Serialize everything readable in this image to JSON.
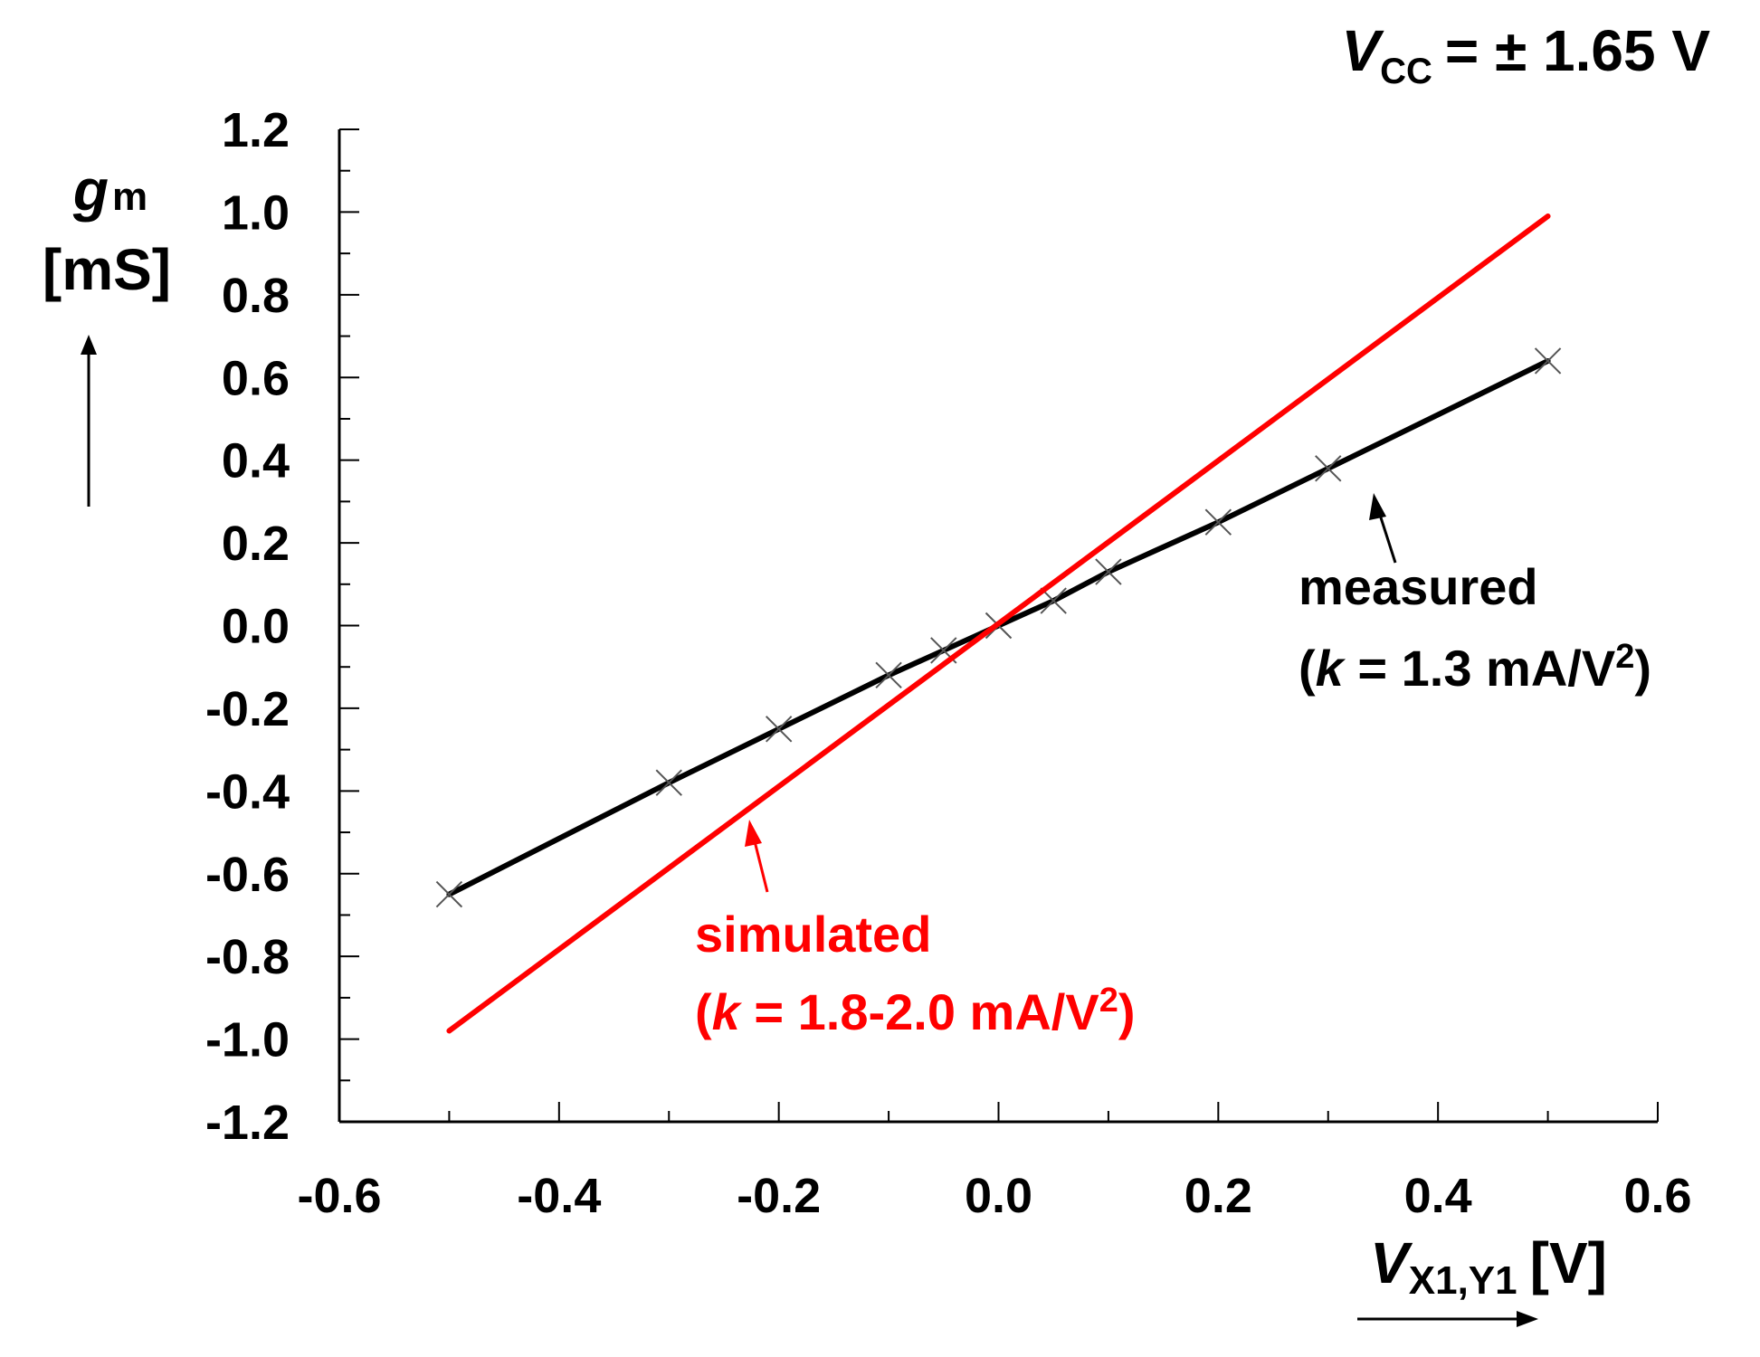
{
  "chart_data": {
    "type": "line",
    "title": {
      "main": "V",
      "sub": "CC",
      "rest": "= ± 1.65 V"
    },
    "xlabel": {
      "main": "V",
      "sub": "X1,Y1",
      "rest": "[V]"
    },
    "ylabel": {
      "main": "g",
      "sub": "m",
      "unit": "[mS]"
    },
    "xlim": [
      -0.6,
      0.6
    ],
    "ylim": [
      -1.2,
      1.2
    ],
    "x_ticks": [
      "-0.6",
      "-0.4",
      "-0.2",
      "0.0",
      "0.2",
      "0.4",
      "0.6"
    ],
    "y_ticks": [
      "1.2",
      "1.0",
      "0.8",
      "0.6",
      "0.4",
      "0.2",
      "0.0",
      "-0.2",
      "-0.4",
      "-0.6",
      "-0.8",
      "-1.0",
      "-1.2"
    ],
    "series": [
      {
        "name": "measured",
        "color": "#000000",
        "marker": "x",
        "x": [
          -0.5,
          -0.3,
          -0.2,
          -0.1,
          -0.05,
          0.0,
          0.05,
          0.1,
          0.2,
          0.3,
          0.5
        ],
        "y": [
          -0.65,
          -0.38,
          -0.25,
          -0.12,
          -0.06,
          0.0,
          0.06,
          0.13,
          0.25,
          0.38,
          0.64
        ]
      },
      {
        "name": "simulated",
        "color": "#ff0000",
        "marker": "none",
        "x": [
          -0.5,
          0.5
        ],
        "y": [
          -0.98,
          0.99
        ]
      }
    ],
    "annotations": {
      "measured": {
        "line1": "measured",
        "open": "(",
        "k": "k",
        "text": " = 1.3 mA/V",
        "sup": "2",
        "close": ")"
      },
      "simulated": {
        "line1": "simulated",
        "open": "(",
        "k": "k",
        "text": " = 1.8-2.0 mA/V",
        "sup": "2",
        "close": ")"
      }
    }
  }
}
